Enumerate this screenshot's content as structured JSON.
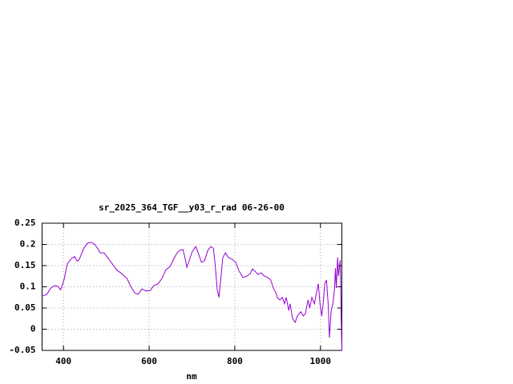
{
  "chart_data": {
    "type": "line",
    "title": "sr_2025_364_TGF__y03_r_rad 06-26-00",
    "x_label": "nm",
    "x": [
      350,
      361,
      370,
      380,
      387,
      393,
      398,
      402,
      409,
      419,
      426,
      432,
      437,
      447,
      456,
      464,
      473,
      480,
      486,
      495,
      503,
      514,
      525,
      536,
      548,
      557,
      566,
      574,
      583,
      593,
      602,
      611,
      621,
      630,
      639,
      649,
      656,
      664,
      671,
      679,
      684,
      688,
      694,
      701,
      709,
      716,
      722,
      729,
      737,
      744,
      750,
      754,
      759,
      763,
      767,
      772,
      778,
      785,
      794,
      802,
      809,
      819,
      828,
      836,
      841,
      849,
      854,
      862,
      869,
      877,
      884,
      890,
      896,
      899,
      905,
      911,
      916,
      920,
      926,
      929,
      935,
      941,
      946,
      954,
      960,
      965,
      971,
      975,
      980,
      986,
      991,
      995,
      999,
      1003,
      1006,
      1010,
      1014,
      1018,
      1021,
      1025,
      1029,
      1033,
      1035,
      1037,
      1040,
      1042,
      1046,
      1048,
      1050
    ],
    "series": [
      {
        "color": "#9400d3",
        "values": [
          0.078,
          0.082,
          0.097,
          0.103,
          0.101,
          0.093,
          0.106,
          0.12,
          0.154,
          0.167,
          0.171,
          0.16,
          0.165,
          0.19,
          0.203,
          0.205,
          0.2,
          0.19,
          0.18,
          0.18,
          0.169,
          0.154,
          0.139,
          0.131,
          0.12,
          0.101,
          0.086,
          0.082,
          0.095,
          0.09,
          0.091,
          0.103,
          0.107,
          0.12,
          0.14,
          0.148,
          0.163,
          0.178,
          0.186,
          0.188,
          0.167,
          0.146,
          0.163,
          0.184,
          0.195,
          0.176,
          0.158,
          0.161,
          0.186,
          0.195,
          0.191,
          0.154,
          0.093,
          0.075,
          0.116,
          0.169,
          0.18,
          0.169,
          0.165,
          0.158,
          0.139,
          0.122,
          0.125,
          0.131,
          0.142,
          0.135,
          0.129,
          0.133,
          0.125,
          0.122,
          0.116,
          0.097,
          0.086,
          0.075,
          0.069,
          0.075,
          0.06,
          0.075,
          0.044,
          0.06,
          0.025,
          0.016,
          0.031,
          0.041,
          0.031,
          0.037,
          0.069,
          0.05,
          0.075,
          0.06,
          0.088,
          0.107,
          0.06,
          0.031,
          0.056,
          0.107,
          0.116,
          0.06,
          -0.02,
          0.044,
          0.06,
          0.097,
          0.144,
          0.097,
          0.169,
          0.125,
          0.163,
          0.05,
          -0.05
        ]
      }
    ],
    "xlim": [
      350,
      1050
    ],
    "xticks": [
      400,
      600,
      800,
      1000
    ],
    "ylim": [
      -0.05,
      0.25
    ],
    "yticks": [
      -0.05,
      0,
      0.05,
      0.1,
      0.15,
      0.2,
      0.25
    ],
    "grid": true
  }
}
